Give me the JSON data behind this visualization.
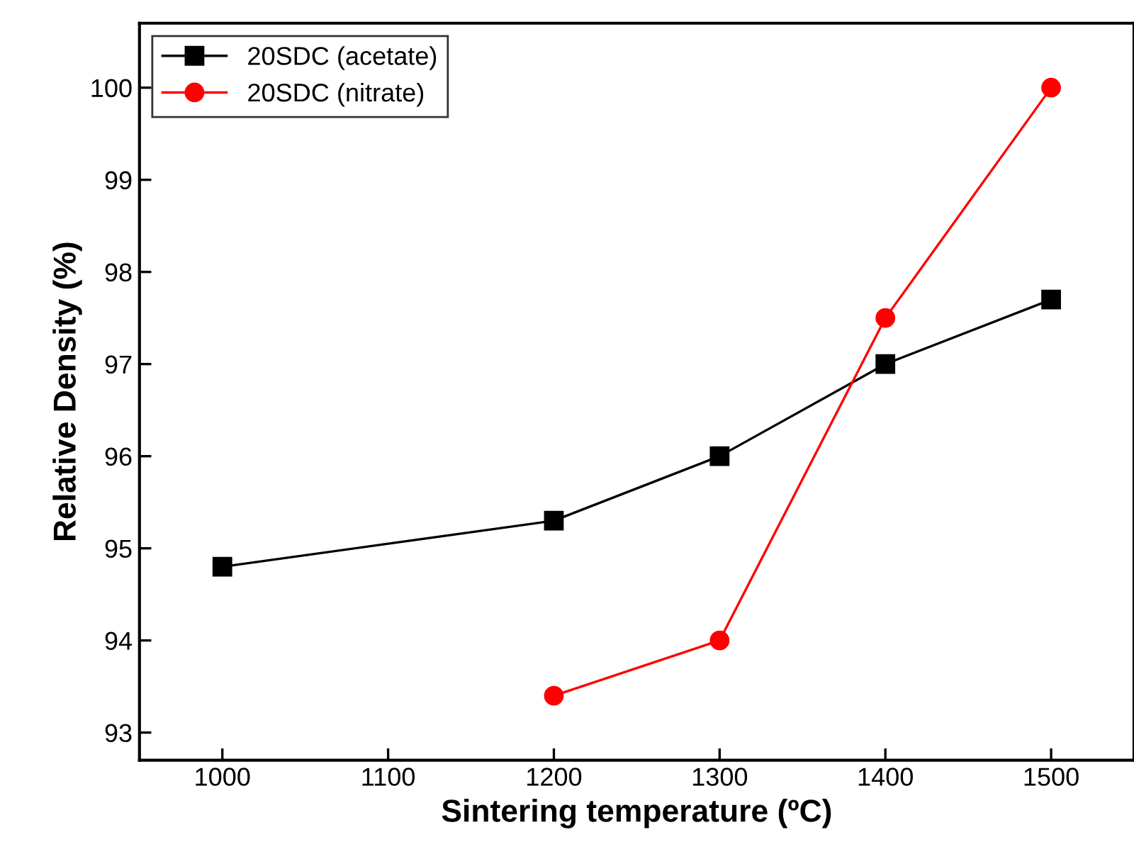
{
  "chart_data": {
    "type": "line",
    "xlabel": "Sintering temperature (ºC)",
    "ylabel": "Relative Density (%)",
    "x": [
      1000,
      1200,
      1300,
      1400,
      1500
    ],
    "series": [
      {
        "name": "20SDC (acetate)",
        "color": "#000000",
        "marker": "square",
        "values": [
          94.8,
          95.3,
          96.0,
          97.0,
          97.7
        ]
      },
      {
        "name": "20SDC (nitrate)",
        "color": "#ff0000",
        "marker": "circle",
        "values": [
          null,
          93.4,
          94.0,
          97.5,
          100.0
        ]
      }
    ],
    "xlim": [
      950,
      1550
    ],
    "ylim": [
      92.7,
      100.7
    ],
    "xticks": [
      1000,
      1100,
      1200,
      1300,
      1400,
      1500
    ],
    "yticks": [
      93,
      94,
      95,
      96,
      97,
      98,
      99,
      100
    ],
    "grid": false,
    "legend": "top left",
    "line_style": "solid"
  }
}
